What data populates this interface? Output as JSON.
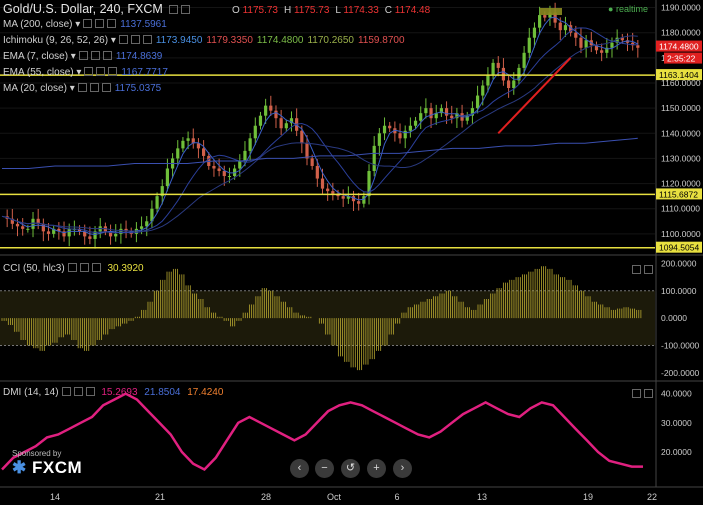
{
  "header": {
    "title": "Gold/U.S. Dollar, 240, FXCM",
    "ohlc": [
      {
        "k": "O",
        "v": "1175.73"
      },
      {
        "k": "H",
        "v": "1175.73"
      },
      {
        "k": "L",
        "v": "1174.33"
      },
      {
        "k": "C",
        "v": "1174.48"
      }
    ],
    "realtime": "realtime"
  },
  "legend": [
    {
      "name": "MA (200, close)",
      "values": [
        "1137.5961"
      ],
      "colors": [
        "#4a6fd8"
      ]
    },
    {
      "name": "Ichimoku (9, 26, 52, 26)",
      "values": [
        "1173.9450",
        "1179.3350",
        "1174.4800",
        "1170.2650",
        "1159.8700"
      ],
      "colors": [
        "#4a90e2",
        "#e05050",
        "#7cbc48",
        "#9ab04a",
        "#e05050"
      ]
    },
    {
      "name": "EMA (7, close)",
      "values": [
        "1174.8639"
      ],
      "colors": [
        "#4a6fd8"
      ]
    },
    {
      "name": "EMA (55, close)",
      "values": [
        "1167.7717"
      ],
      "colors": [
        "#4a6fd8"
      ]
    },
    {
      "name": "MA (20, close)",
      "values": [
        "1175.0375"
      ],
      "colors": [
        "#4a6fd8"
      ]
    }
  ],
  "price_axis": {
    "ticks": [
      "1190.0000",
      "1180.0000",
      "1170.0000",
      "1160.0000",
      "1150.0000",
      "1140.0000",
      "1130.0000",
      "1120.0000",
      "1110.0000",
      "1100.0000"
    ],
    "last_price": "1174.4800",
    "countdown": "2:35:22",
    "levels": [
      {
        "label": "1163.1404",
        "value": 1163.14
      },
      {
        "label": "1115.6872",
        "value": 1115.69
      },
      {
        "label": "1094.5054",
        "value": 1094.51
      }
    ]
  },
  "cci": {
    "name": "CCI (50, hlc3)",
    "value": "30.3920",
    "ticks": [
      "200.0000",
      "100.0000",
      "0.0000",
      "-100.0000",
      "-200.0000"
    ]
  },
  "dmi": {
    "name": "DMI (14, 14)",
    "values": [
      "15.2693",
      "21.8504",
      "17.4240"
    ],
    "colors": [
      "#e02080",
      "#4a6fd8",
      "#f08030"
    ],
    "ticks": [
      "40.0000",
      "30.0000",
      "20.0000"
    ]
  },
  "time_axis": {
    "ticks": [
      "14",
      "21",
      "28",
      "Oct",
      "6",
      "13",
      "19",
      "22"
    ]
  },
  "logo": {
    "sponsored": "Sponsored by",
    "brand": "FXCM"
  },
  "nav": {
    "buttons": [
      "‹",
      "−",
      "↺",
      "+",
      "›"
    ]
  },
  "chart_data": [
    {
      "type": "candlestick",
      "title": "Gold/U.S. Dollar, 240, FXCM",
      "ylim": [
        1092,
        1193
      ],
      "x_ticks": [
        "14",
        "21",
        "28",
        "Oct",
        "6",
        "13",
        "19",
        "22"
      ],
      "close_path": [
        1107,
        1106,
        1104,
        1103,
        1102,
        1102,
        1106,
        1104,
        1101,
        1100,
        1102,
        1101,
        1099,
        1102,
        1102,
        1101,
        1099,
        1098,
        1101,
        1103,
        1101,
        1099,
        1100,
        1102,
        1101,
        1100,
        1102,
        1103,
        1105,
        1110,
        1115,
        1119,
        1126,
        1130,
        1134,
        1137,
        1138,
        1136,
        1134,
        1131,
        1127,
        1126,
        1125,
        1123,
        1123,
        1126,
        1129,
        1133,
        1138,
        1143,
        1147,
        1151,
        1149,
        1146,
        1142,
        1144,
        1146,
        1141,
        1136,
        1130,
        1127,
        1122,
        1118,
        1117,
        1116,
        1115,
        1114,
        1115,
        1113,
        1112,
        1115,
        1125,
        1135,
        1140,
        1143,
        1142,
        1140,
        1138,
        1141,
        1143,
        1145,
        1148,
        1150,
        1146,
        1148,
        1150,
        1147,
        1146,
        1148,
        1145,
        1147,
        1150,
        1155,
        1159,
        1163,
        1168,
        1166,
        1161,
        1158,
        1161,
        1166,
        1172,
        1178,
        1182,
        1187,
        1186,
        1188,
        1184,
        1181,
        1183,
        1180,
        1178,
        1174,
        1177,
        1175,
        1173,
        1172,
        1174,
        1176,
        1178,
        1177,
        1176,
        1175,
        1174
      ],
      "ma200": [
        1126,
        1126,
        1127,
        1127,
        1127,
        1128,
        1128,
        1128,
        1129,
        1129,
        1130,
        1130,
        1131,
        1131,
        1132,
        1132,
        1133,
        1134,
        1134,
        1135,
        1135,
        1136,
        1136,
        1137,
        1138
      ],
      "trendline": [
        [
          96,
          1140
        ],
        [
          110,
          1170
        ]
      ],
      "horizontal_levels": [
        1163.14,
        1115.69,
        1094.51
      ]
    },
    {
      "type": "line",
      "title": "CCI (50, hlc3)",
      "ylim": [
        -230,
        220
      ],
      "bands": [
        100,
        -100
      ],
      "values": [
        -10,
        -25,
        -50,
        -80,
        -100,
        -110,
        -120,
        -100,
        -90,
        -70,
        -60,
        -80,
        -110,
        -120,
        -100,
        -80,
        -60,
        -40,
        -30,
        -20,
        -10,
        5,
        30,
        60,
        100,
        140,
        170,
        180,
        160,
        120,
        90,
        70,
        40,
        20,
        5,
        -10,
        -30,
        -10,
        20,
        50,
        80,
        110,
        100,
        80,
        60,
        40,
        20,
        10,
        5,
        0,
        -20,
        -60,
        -100,
        -140,
        -160,
        -180,
        -190,
        -170,
        -150,
        -120,
        -100,
        -60,
        -20,
        20,
        40,
        50,
        60,
        70,
        80,
        90,
        100,
        80,
        60,
        40,
        30,
        50,
        70,
        90,
        110,
        130,
        140,
        150,
        160,
        170,
        180,
        190,
        180,
        160,
        150,
        140,
        120,
        100,
        80,
        60,
        50,
        40,
        30,
        35,
        40,
        35,
        30
      ]
    },
    {
      "type": "line",
      "title": "DMI (14, 14)",
      "ylim": [
        8,
        44
      ],
      "series": [
        {
          "name": "15.2693",
          "values": [
            14,
            18,
            20,
            22,
            25,
            26,
            28,
            30,
            32,
            36,
            38,
            40,
            38,
            34,
            30,
            26,
            20,
            16,
            14,
            18,
            24,
            30,
            32,
            30,
            28,
            26,
            24,
            26,
            30,
            34,
            36,
            37,
            36,
            34,
            32,
            30,
            28,
            26,
            25,
            27,
            30,
            33,
            35,
            37,
            35,
            33,
            32,
            35,
            37,
            36,
            32,
            28,
            24,
            20,
            17,
            16,
            15,
            15
          ]
        }
      ]
    }
  ]
}
